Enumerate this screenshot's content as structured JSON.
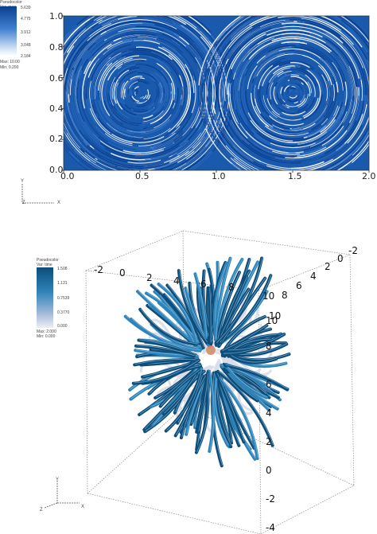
{
  "colors": {
    "plot_dark": "#0b3f8f",
    "plot_mid": "#2a6bc0",
    "plot_light": "#ffffff",
    "tube_dark": "#0d4d7a",
    "tube_mid": "#2e83b8",
    "tube_light": "#d9dbe8"
  },
  "chart_data": [
    {
      "type": "heatmap",
      "description_of_marks": "pseudocolor streamlines, two counter-rotating vortices",
      "xlim": [
        0.0,
        2.0
      ],
      "ylim": [
        0.0,
        1.0
      ],
      "x_ticks": [
        "0.0",
        "0.5",
        "1.0",
        "1.5",
        "2.0"
      ],
      "y_ticks": [
        "0.0",
        "0.2",
        "0.4",
        "0.6",
        "0.8",
        "1.0"
      ],
      "vortex_centers": [
        [
          0.5,
          0.5
        ],
        [
          1.5,
          0.5
        ]
      ],
      "legend": {
        "title": "Pseudocolor",
        "var": "Var: mag",
        "levels": [
          "5.639",
          "4.775",
          "3.912",
          "3.048",
          "2.184"
        ],
        "max": "Max: 10.00",
        "min": "Min: 0.200"
      },
      "triad": {
        "y": "Y",
        "z": "Z",
        "x": "X"
      }
    },
    {
      "type": "scatter",
      "description_of_marks": "3D pseudocolor streamtubes",
      "x_ticks": [
        "-2",
        "0",
        "2",
        "4",
        "6",
        "8",
        "10"
      ],
      "y_ticks": [
        "-4",
        "-2",
        "0",
        "2",
        "4",
        "6",
        "8",
        "10"
      ],
      "z_ticks": [
        "10",
        "8",
        "6",
        "4",
        "2",
        "0",
        "-2"
      ],
      "legend": {
        "title": "Pseudocolor",
        "var": "Var: time",
        "levels": [
          "1.508",
          "1.131",
          "0.7539",
          "0.3770",
          "0.000"
        ],
        "max": "Max: 2.000",
        "min": "Min: 0.000"
      },
      "triad": {
        "y": "Y",
        "z": "Z",
        "x": "X"
      }
    }
  ]
}
